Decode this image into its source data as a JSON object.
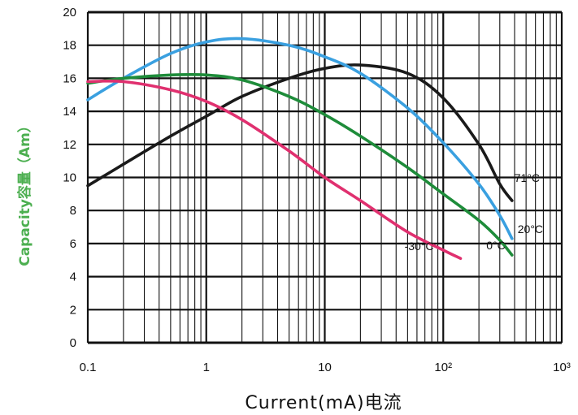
{
  "chart_data": {
    "type": "line",
    "title": "",
    "xlabel": "Current(mA)电流",
    "ylabel": "Capacity容量（Am）",
    "xscale": "log",
    "xlim": [
      0.1,
      1000
    ],
    "ylim": [
      0,
      20
    ],
    "grid": true,
    "x_ticks": [
      "0.1",
      "1",
      "10",
      "10²",
      "10³"
    ],
    "y_ticks": [
      "0",
      "2",
      "4",
      "6",
      "8",
      "10",
      "12",
      "14",
      "16",
      "18",
      "20"
    ],
    "colors": {
      "grid": "#111111",
      "ylabel": "#4caf50",
      "background": "#ffffff"
    },
    "series": [
      {
        "name": "71°C",
        "color": "#1a1a1a",
        "x": [
          0.1,
          0.2,
          0.5,
          1,
          2,
          5,
          10,
          20,
          50,
          100,
          200,
          300,
          380
        ],
        "values": [
          9.5,
          10.8,
          12.5,
          13.7,
          14.9,
          16.0,
          16.6,
          16.8,
          16.3,
          14.8,
          12.0,
          9.6,
          8.6
        ]
      },
      {
        "name": "20°C",
        "color": "#3aa0e0",
        "x": [
          0.1,
          0.2,
          0.5,
          1,
          2,
          5,
          10,
          20,
          50,
          100,
          200,
          300,
          380
        ],
        "values": [
          14.7,
          16.0,
          17.5,
          18.2,
          18.4,
          18.0,
          17.3,
          16.3,
          14.2,
          12.1,
          9.6,
          7.7,
          6.3
        ]
      },
      {
        "name": "0°C",
        "color": "#1e8c3a",
        "x": [
          0.1,
          0.2,
          0.5,
          1,
          2,
          5,
          10,
          20,
          50,
          100,
          200,
          300,
          380
        ],
        "values": [
          15.7,
          16.0,
          16.2,
          16.2,
          15.9,
          14.9,
          13.8,
          12.5,
          10.6,
          9.0,
          7.4,
          6.2,
          5.3
        ]
      },
      {
        "name": "-30°C",
        "color": "#e0306f",
        "x": [
          0.1,
          0.2,
          0.5,
          1,
          2,
          5,
          10,
          20,
          50,
          100,
          140
        ],
        "values": [
          15.8,
          15.8,
          15.3,
          14.6,
          13.5,
          11.6,
          10.0,
          8.6,
          6.7,
          5.6,
          5.1
        ]
      }
    ],
    "curve_labels": [
      "71°C",
      "20°C",
      "0°C",
      "-30°C"
    ]
  }
}
